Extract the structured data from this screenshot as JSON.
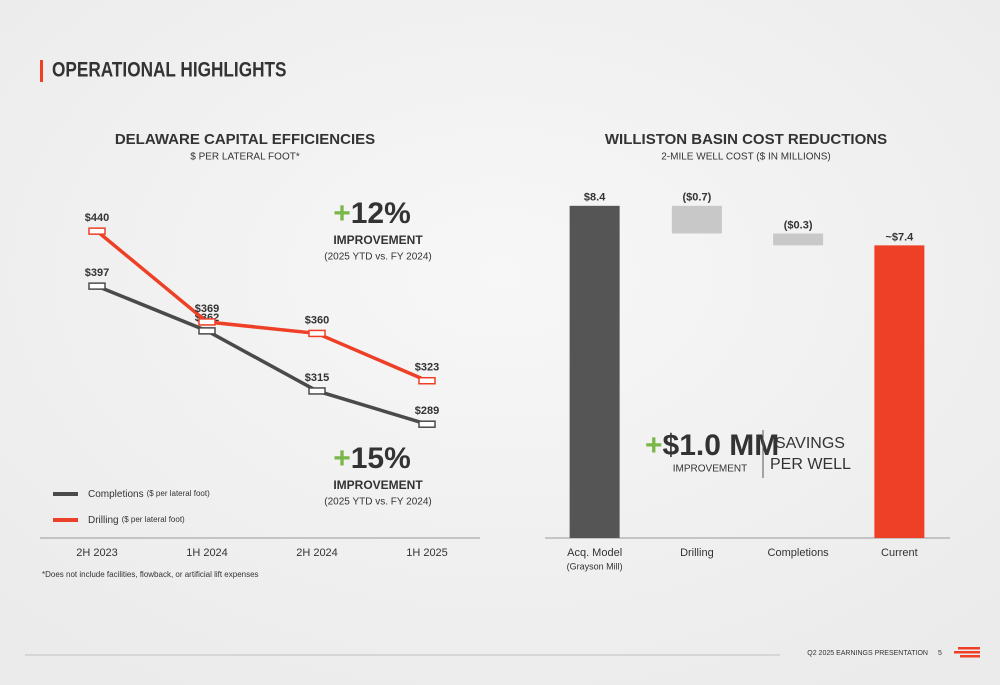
{
  "header": {
    "title": "OPERATIONAL HIGHLIGHTS"
  },
  "chart_data": [
    {
      "type": "line",
      "title": "DELAWARE CAPITAL EFFICIENCIES",
      "subtitle": "$ PER LATERAL FOOT*",
      "categories": [
        "2H 2023",
        "1H 2024",
        "2H 2024",
        "1H 2025"
      ],
      "series": [
        {
          "name": "Completions",
          "color": "#4a4a4a",
          "values": [
            397,
            362,
            315,
            289
          ],
          "value_labels": [
            "$397",
            "$362",
            "$315",
            "$289"
          ]
        },
        {
          "name": "Drilling",
          "color": "#ee4027",
          "values": [
            440,
            369,
            360,
            323
          ],
          "value_labels": [
            "$440",
            "$369",
            "$360",
            "$323"
          ]
        }
      ],
      "legend_suffix": "($ per lateral foot)",
      "legend": "lower left",
      "ylim": [
        200,
        480
      ],
      "annotations": [
        {
          "sign": "+",
          "text": "12%",
          "label": "IMPROVEMENT",
          "note": "(2025 YTD vs. FY 2024)"
        },
        {
          "sign": "+",
          "text": "15%",
          "label": "IMPROVEMENT",
          "note": "(2025 YTD vs. FY 2024)"
        }
      ],
      "footnote": "*Does not include facilities, flowback, or artificial lift expenses"
    },
    {
      "type": "waterfall",
      "title": "WILLISTON BASIN COST REDUCTIONS",
      "subtitle": "2-MILE WELL COST ($ IN MILLIONS)",
      "categories": [
        "Acq. Model",
        "Drilling",
        "Completions",
        "Current"
      ],
      "category_notes": [
        "(Grayson Mill)",
        null,
        null,
        null
      ],
      "values": [
        8.4,
        -0.7,
        -0.3,
        7.4
      ],
      "value_labels": [
        "$8.4",
        "($0.7)",
        "($0.3)",
        "~$7.4"
      ],
      "measures": [
        "total",
        "relative",
        "relative",
        "total"
      ],
      "colors": [
        "#555555",
        "#c8c8c8",
        "#c8c8c8",
        "#ee4027"
      ],
      "ylim": [
        0,
        8.8
      ],
      "callout": {
        "sign": "+",
        "text": "$1.0 MM",
        "label": "IMPROVEMENT",
        "side": "SAVINGS PER WELL"
      }
    }
  ],
  "footer": {
    "text": "Q2 2025 EARNINGS PRESENTATION",
    "page": "5"
  }
}
